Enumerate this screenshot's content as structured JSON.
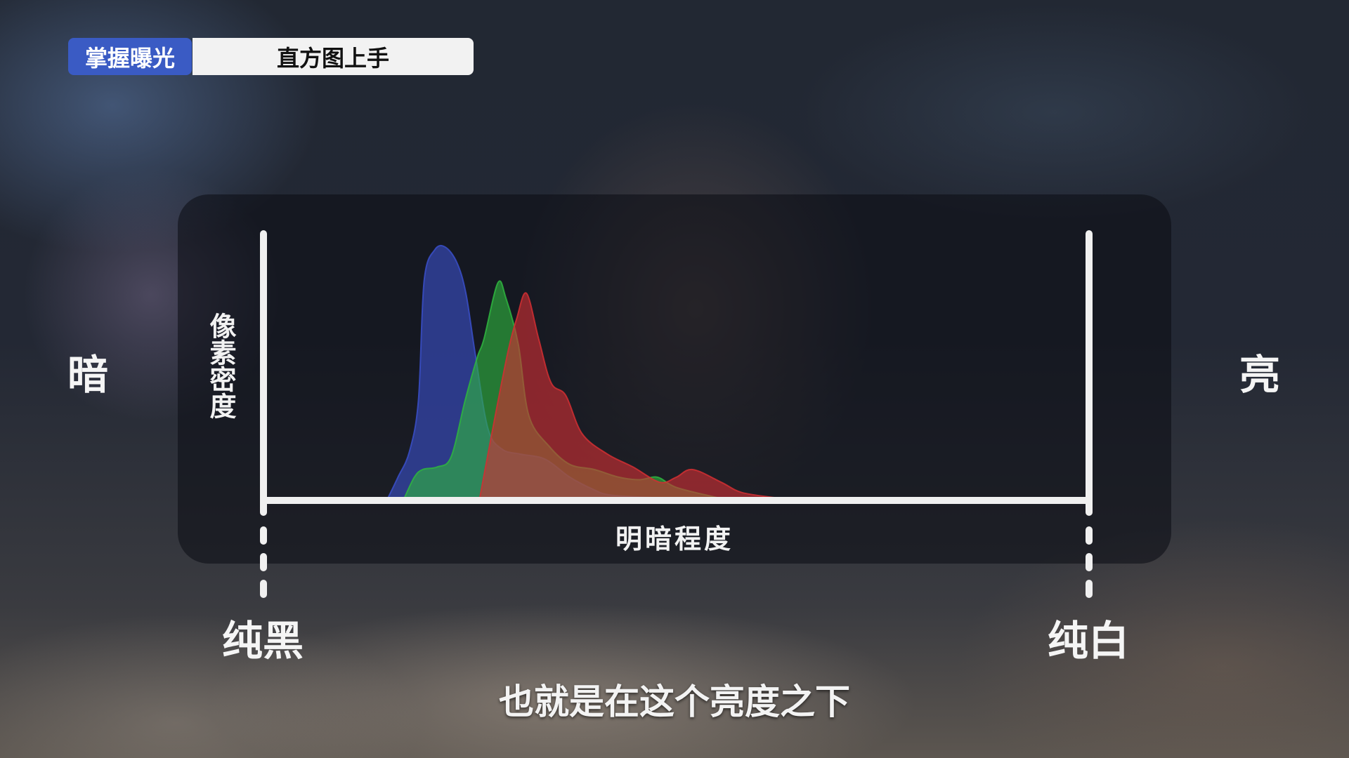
{
  "header": {
    "category_badge": "掌握曝光",
    "title_badge": "直方图上手"
  },
  "side_labels": {
    "left": "暗",
    "right": "亮"
  },
  "end_labels": {
    "left": "纯黑",
    "right": "纯白"
  },
  "subtitle": "也就是在这个亮度之下",
  "chart_data": {
    "type": "area",
    "title": "",
    "xlabel": "明暗程度",
    "ylabel": "像素密度",
    "xlim": [
      0,
      100
    ],
    "ylim": [
      0,
      100
    ],
    "grid": false,
    "legend": "none",
    "series": [
      {
        "color": "#3a4fc8",
        "x": [
          14.8,
          16,
          17.4,
          18.5,
          19.2,
          20.5,
          21.8,
          23.2,
          24.3,
          25.5,
          27,
          28.7,
          31,
          34,
          37,
          40,
          42,
          47
        ],
        "values": [
          0,
          8,
          18,
          38,
          85,
          97,
          98,
          92,
          80,
          55,
          27,
          19,
          17,
          15,
          8,
          3,
          1,
          0
        ]
      },
      {
        "color": "#2fb53f",
        "x": [
          16.8,
          18,
          19,
          20.8,
          22.5,
          24.2,
          25.7,
          26.5,
          28.2,
          29.2,
          30.7,
          32,
          34.5,
          37,
          40,
          43,
          45.5,
          47.7,
          50,
          55
        ],
        "values": [
          0,
          8,
          11,
          12,
          16,
          38,
          55,
          62,
          84,
          78,
          60,
          32,
          20,
          13,
          11,
          8,
          7,
          8,
          4,
          0
        ]
      },
      {
        "color": "#d12f33",
        "x": [
          26,
          28,
          29.5,
          30.5,
          31.7,
          33.2,
          34.7,
          36.5,
          38.5,
          41.6,
          44.7,
          48,
          50,
          52,
          55.5,
          58,
          62
        ],
        "values": [
          0,
          34,
          58,
          70,
          80,
          62,
          45,
          40,
          25,
          17,
          12,
          6,
          8,
          11,
          6,
          2,
          0
        ]
      }
    ]
  }
}
